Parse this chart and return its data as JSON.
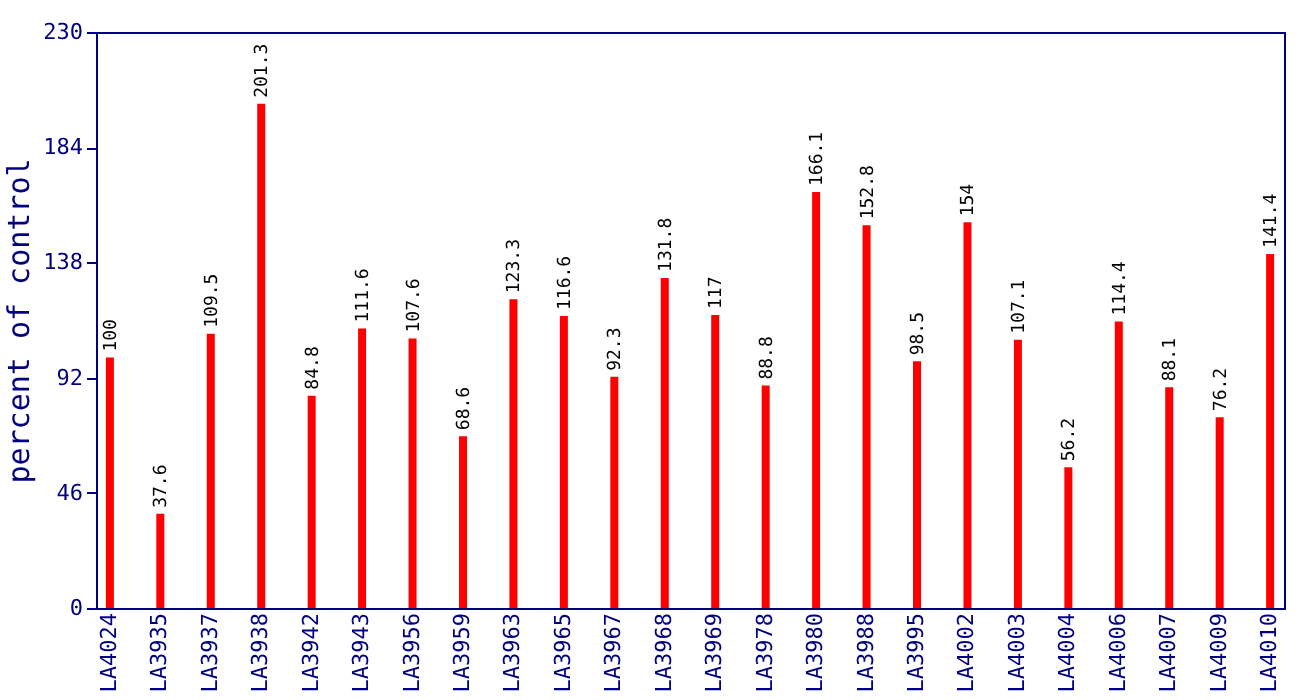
{
  "chart_data": {
    "type": "bar",
    "ylabel": "percent of control",
    "categories": [
      "LA4024",
      "LA3935",
      "LA3937",
      "LA3938",
      "LA3942",
      "LA3943",
      "LA3956",
      "LA3959",
      "LA3963",
      "LA3965",
      "LA3967",
      "LA3968",
      "LA3969",
      "LA3978",
      "LA3980",
      "LA3988",
      "LA3995",
      "LA4002",
      "LA4003",
      "LA4004",
      "LA4006",
      "LA4007",
      "LA4009",
      "LA4010"
    ],
    "values": [
      100,
      37.6,
      109.5,
      201.3,
      84.8,
      111.6,
      107.6,
      68.6,
      123.3,
      116.6,
      92.3,
      131.8,
      117,
      88.8,
      166.1,
      152.8,
      98.5,
      154,
      107.1,
      56.2,
      114.4,
      88.1,
      76.2,
      141.4
    ],
    "color": "#ff0000",
    "ylim": [
      0,
      230
    ],
    "yticks": [
      0,
      46,
      92,
      138,
      184,
      230
    ],
    "data_labels": true,
    "grid": false
  }
}
